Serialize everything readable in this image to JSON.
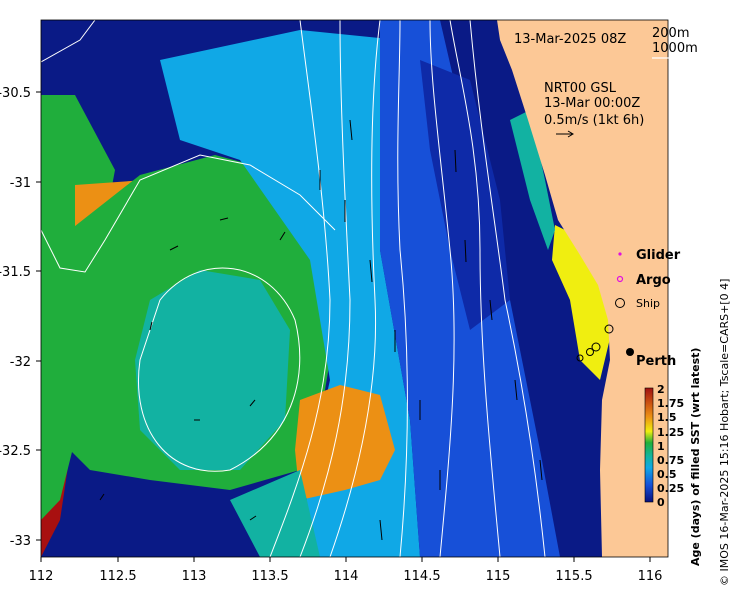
{
  "map": {
    "date_label": "13-Mar-2025 08Z",
    "depth_contours": [
      "200m",
      "1000m"
    ],
    "current_info": {
      "line1": "NRT00 GSL",
      "line2": "13-Mar 00:00Z",
      "line3": "0.5m/s (1kt 6h)"
    },
    "legend": {
      "glider": "Glider",
      "argo": "Argo",
      "ship": "Ship"
    },
    "place": "Perth",
    "x_ticks": [
      "112",
      "112.5",
      "113",
      "113.5",
      "114",
      "114.5",
      "115",
      "115.5",
      "116"
    ],
    "y_ticks": [
      "-30.5",
      "-31",
      "-31.5",
      "-32",
      "-32.5",
      "-33"
    ],
    "x_range": [
      112,
      116.2
    ],
    "y_range": [
      -33.2,
      -30.1
    ],
    "colorbar": {
      "title": "Age (days) of filled SST (wrt latest)",
      "ticks": [
        "2",
        "1.75",
        "1.5",
        "1.25",
        "1",
        "0.75",
        "0.5",
        "0.25",
        "0"
      ],
      "range": [
        0,
        2
      ]
    },
    "credit": "© IMOS 16-Mar-2025 15:16 Hobart; Tscale=CARS+[0 4]",
    "colors": {
      "land": "#fcc896",
      "dark_blue": "#0a1a86",
      "blue": "#1750d8",
      "light_blue": "#10a8e6",
      "teal": "#12b2a2",
      "green": "#20ae3c",
      "yellow": "#f0ee10",
      "orange": "#ec9014",
      "dark_red": "#a81010"
    }
  }
}
